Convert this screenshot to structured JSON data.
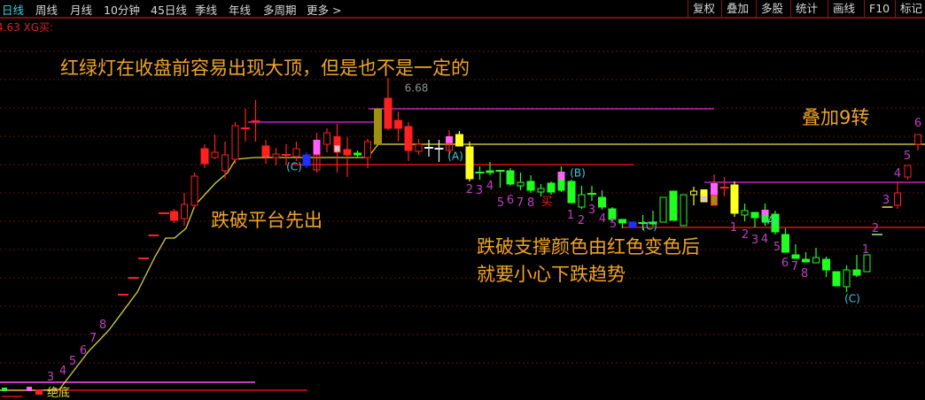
{
  "toolbar": {
    "period_tabs": [
      "日线",
      "周线",
      "月线",
      "10分钟",
      "45日线",
      "季线",
      "年线",
      "多周期",
      "更多 >"
    ],
    "active_tab": "日线",
    "right_buttons": [
      "复权",
      "叠加",
      "多股",
      "统计",
      "画线",
      "F10",
      "标记"
    ]
  },
  "indicator_readout": "4.63 XG买:",
  "annotations": {
    "note_top": "红绿灯在收盘前容易出现大顶，但是也不是一定的",
    "note_platform": "跌破平台先出",
    "note_support_1": "跌破支撑颜色由红色变色后",
    "note_support_2": "就要小心下跌趋势",
    "note_overlay": "叠加9转",
    "price_tag": "6.68",
    "bottom_label": "绝底",
    "buy_marker": "买"
  },
  "wave_labels": [
    "(C)",
    "(A)",
    "(B)",
    "(C)",
    "(A)",
    "(C)"
  ],
  "td_counts": [
    "3",
    "4",
    "5",
    "6",
    "7",
    "8",
    "2",
    "3",
    "4",
    "5",
    "6",
    "7",
    "8",
    "1",
    "2",
    "3",
    "4",
    "5",
    "1",
    "2",
    "3",
    "4",
    "5",
    "6",
    "7",
    "8",
    "1",
    "2",
    "3",
    "4",
    "5",
    "6"
  ],
  "colors": {
    "up": "#ff2020",
    "down": "#20ff20",
    "yellow": "#ffff20",
    "pink": "#ff60ff",
    "blue": "#2030ff",
    "olive": "#a09010",
    "note": "#f0a428",
    "td_count": "#c040c0",
    "wave": "#40c8d8",
    "support_line": "#d8d040"
  },
  "chart_data": {
    "type": "candlestick",
    "fields": [
      "high",
      "body_top",
      "body_bottom",
      "low",
      "style"
    ],
    "candles": [
      [
        12.7,
        12.7,
        12.7,
        12.7,
        "dash-r"
      ],
      [
        14.6,
        14.6,
        14.6,
        14.6,
        "dash-r"
      ],
      [
        16.8,
        16.8,
        16.8,
        16.8,
        "dash-r"
      ],
      [
        19.4,
        19.4,
        19.4,
        19.4,
        "dash-r"
      ],
      [
        21.9,
        21.9,
        21.9,
        21.9,
        "dash-r"
      ],
      [
        22.4,
        22.1,
        21.1,
        20.8,
        "r"
      ],
      [
        24.2,
        22.9,
        21.3,
        20.5,
        "rh"
      ],
      [
        26.5,
        26.1,
        22.8,
        22.4,
        "rh"
      ],
      [
        29.7,
        29.2,
        27.5,
        27,
        "r"
      ],
      [
        30.8,
        28.8,
        28.2,
        28,
        "rh"
      ],
      [
        30,
        28.5,
        26.7,
        25.8,
        "rh"
      ],
      [
        32.2,
        31.8,
        28,
        27.5,
        "rh"
      ],
      [
        33.7,
        31.5,
        31.5,
        30,
        "xr"
      ],
      [
        34.7,
        32.3,
        32.3,
        30,
        "xr"
      ],
      [
        30.2,
        29.5,
        28.3,
        27.5,
        "r"
      ],
      [
        29.3,
        28.6,
        28.2,
        27.3,
        "rh"
      ],
      [
        29.7,
        28.5,
        28.5,
        27.3,
        "xr"
      ],
      [
        30,
        29.2,
        28.3,
        27.8,
        "rh"
      ],
      [
        28.8,
        28.5,
        27.3,
        27,
        "b"
      ],
      [
        31,
        30.2,
        26.8,
        26.5,
        "p"
      ],
      [
        31.5,
        31,
        29.7,
        28.8,
        "rh"
      ],
      [
        32,
        30.6,
        28.8,
        26.5,
        "rw"
      ],
      [
        30.5,
        29.1,
        28.5,
        26,
        "r"
      ],
      [
        29,
        28.7,
        28.5,
        28.2,
        "g"
      ],
      [
        30.3,
        30,
        28.2,
        27,
        "rh"
      ],
      [
        33.7,
        33.7,
        29.7,
        29.7,
        "o"
      ],
      [
        37.2,
        34.9,
        31.5,
        31.3,
        "r"
      ],
      [
        33.4,
        32.4,
        31.5,
        30,
        "r"
      ],
      [
        32.2,
        31.7,
        29,
        27.8,
        "r"
      ],
      [
        30.3,
        29.7,
        28.9,
        28.5,
        "rh"
      ],
      [
        30.2,
        29.3,
        29.3,
        28.3,
        "xw"
      ],
      [
        30.2,
        29.2,
        29.2,
        27.7,
        "xw"
      ],
      [
        31.3,
        30.6,
        29,
        28.5,
        "p"
      ],
      [
        31.2,
        30.8,
        29.5,
        29.5,
        "y"
      ],
      [
        30,
        29.4,
        25.8,
        25.5,
        "y"
      ],
      [
        27.2,
        26.5,
        26.5,
        25.7,
        "xg"
      ],
      [
        27.7,
        26.7,
        26.5,
        26.2,
        "g"
      ],
      [
        26.7,
        26.7,
        26.5,
        24.8,
        "xg"
      ],
      [
        27,
        26.7,
        25.2,
        25,
        "g"
      ],
      [
        26.5,
        25.4,
        25,
        24.5,
        "gh"
      ],
      [
        26.2,
        25.5,
        24.5,
        24.2,
        "g"
      ],
      [
        25.2,
        24.7,
        24.3,
        23.8,
        "gh"
      ],
      [
        25.5,
        25.3,
        24.3,
        24,
        "g"
      ],
      [
        27.2,
        26.6,
        24.5,
        24.3,
        "pg"
      ],
      [
        25.7,
        25.5,
        23.1,
        23,
        "g"
      ],
      [
        25,
        24,
        22.6,
        22.4,
        "gh"
      ],
      [
        25,
        24.1,
        24.1,
        23.3,
        "xg"
      ],
      [
        24.5,
        23.7,
        22.6,
        22.3,
        "g"
      ],
      [
        22.6,
        22.4,
        21.2,
        21,
        "g"
      ],
      [
        21.2,
        21.2,
        20.8,
        20.2,
        "g"
      ],
      [
        20.9,
        20.9,
        20.3,
        20.3,
        "b"
      ],
      [
        21.7,
        20.8,
        20.8,
        20,
        "xg"
      ],
      [
        22.2,
        20.9,
        20.8,
        20.4,
        "g"
      ],
      [
        23.7,
        23.7,
        20.9,
        20.9,
        "gh"
      ],
      [
        24.4,
        24.4,
        21.1,
        21.1,
        "g"
      ],
      [
        24,
        24,
        20.5,
        20.5,
        "gh"
      ],
      [
        24.9,
        24.4,
        24,
        22.8,
        "yh"
      ],
      [
        24.6,
        24.6,
        23.2,
        23.2,
        "yw"
      ],
      [
        26.3,
        25.3,
        22.8,
        22.8,
        "po"
      ],
      [
        26,
        24.8,
        24.8,
        23.8,
        "xr"
      ],
      [
        25.5,
        25.1,
        21.9,
        21.5,
        "y"
      ],
      [
        23,
        22.2,
        21.7,
        21,
        "gh"
      ],
      [
        22,
        22,
        21.4,
        20.3,
        "g"
      ],
      [
        23,
        22.3,
        20.9,
        20.5,
        "pg"
      ],
      [
        22.2,
        21.8,
        19.8,
        19.5,
        "g"
      ],
      [
        20.2,
        19.5,
        17.5,
        17.5,
        "g"
      ],
      [
        18.4,
        17.2,
        16.8,
        16.8,
        "g"
      ],
      [
        17.5,
        16.7,
        16.4,
        16.4,
        "g"
      ],
      [
        18,
        16.9,
        16.3,
        16.3,
        "gh"
      ],
      [
        17,
        16.7,
        15.5,
        14.7,
        "g"
      ],
      [
        15.3,
        15.3,
        13.7,
        13.7,
        "g"
      ],
      [
        16,
        15.5,
        13.6,
        13,
        "gh"
      ],
      [
        17.2,
        15.5,
        14.9,
        14.7,
        "g"
      ],
      [
        17.2,
        17.2,
        15.3,
        15.3,
        "gh"
      ],
      [
        19.5,
        19.5,
        19.5,
        19.5,
        "dash-g"
      ],
      [
        22.6,
        22.6,
        22.6,
        22.6,
        "dash-y"
      ],
      [
        25.5,
        24.2,
        22.8,
        22.4,
        "rh"
      ],
      [
        27.3,
        27.3,
        26,
        25.7,
        "rh"
      ],
      [
        30.8,
        30.8,
        29.7,
        29,
        "rh"
      ]
    ]
  }
}
